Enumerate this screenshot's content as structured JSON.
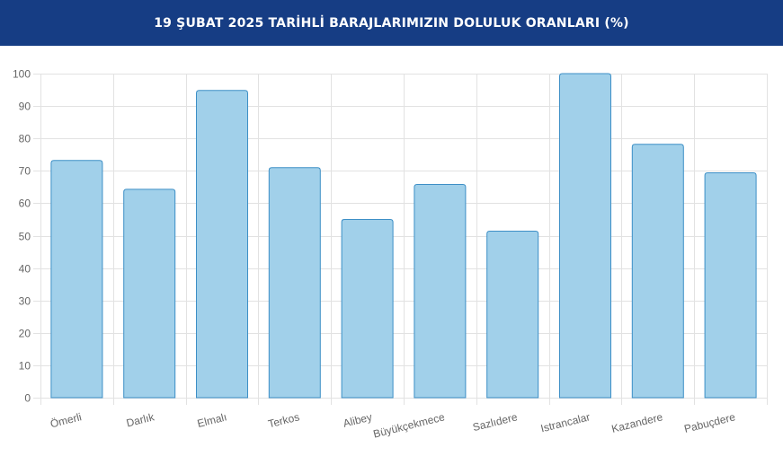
{
  "header": {
    "title": "19 ŞUBAT 2025 TARİHLİ BARAJLARIMIZIN DOLULUK ORANLARI (%)"
  },
  "colors": {
    "header_bg": "#163d84",
    "bar_fill": "#a1d0ea",
    "bar_border": "#3d8fc6",
    "grid": "#e2e2e2"
  },
  "chart_data": {
    "type": "bar",
    "categories": [
      "Ömerli",
      "Darlık",
      "Elmalı",
      "Terkos",
      "Alibey",
      "Büyükçekmece",
      "Sazlıdere",
      "Istrancalar",
      "Kazandere",
      "Pabuçdere"
    ],
    "values": [
      73.2,
      64.3,
      94.8,
      71.0,
      55.0,
      65.8,
      51.4,
      100.0,
      78.2,
      69.4
    ],
    "y_ticks": [
      0,
      10,
      20,
      30,
      40,
      50,
      60,
      70,
      80,
      90,
      100
    ],
    "ylim": [
      0,
      100
    ],
    "grid": true,
    "legend": "none",
    "title": "19 ŞUBAT 2025 TARİHLİ BARAJLARIMIZIN DOLULUK ORANLARI (%)",
    "xlabel": "",
    "ylabel": ""
  }
}
